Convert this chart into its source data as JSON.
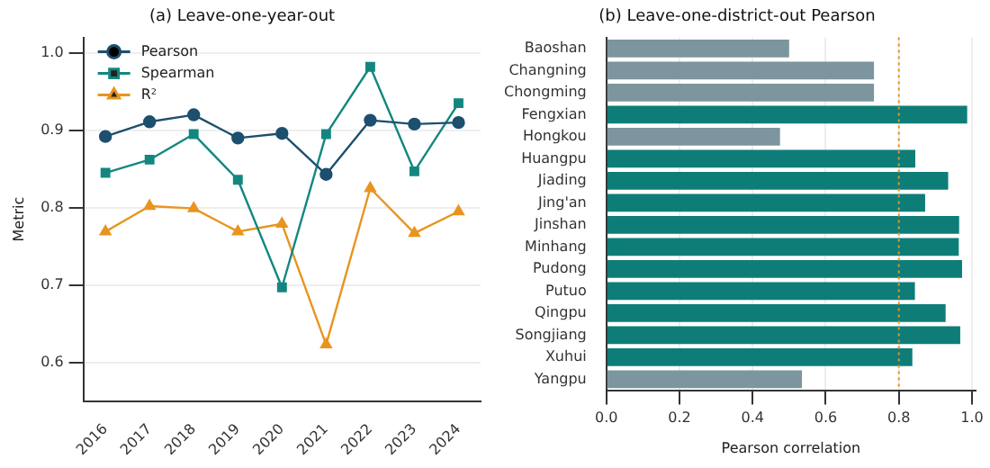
{
  "chart_data": [
    {
      "type": "line",
      "title": "(a) Leave-one-year-out",
      "ylabel": "Metric",
      "categories": [
        "2016",
        "2017",
        "2018",
        "2019",
        "2020",
        "2021",
        "2022",
        "2023",
        "2024"
      ],
      "series": [
        {
          "name": "Pearson",
          "color": "#1d4f6e",
          "marker": "circle",
          "values": [
            0.892,
            0.911,
            0.92,
            0.89,
            0.896,
            0.843,
            0.913,
            0.908,
            0.91
          ]
        },
        {
          "name": "Spearman",
          "color": "#13877f",
          "marker": "square",
          "values": [
            0.845,
            0.862,
            0.895,
            0.836,
            0.697,
            0.895,
            0.982,
            0.847,
            0.935
          ]
        },
        {
          "name": "R²",
          "color": "#e8941f",
          "marker": "triangle",
          "values": [
            0.769,
            0.802,
            0.799,
            0.769,
            0.779,
            0.623,
            0.825,
            0.767,
            0.795
          ]
        }
      ],
      "ylim": [
        0.55,
        1.02
      ],
      "yticks": [
        0.6,
        0.7,
        0.8,
        0.9,
        {
          "value": 1.0,
          "label": "1.0"
        }
      ],
      "grid": "y",
      "legend": "top left"
    },
    {
      "type": "bar",
      "orientation": "horizontal",
      "title": "(b) Leave-one-district-out Pearson",
      "xlabel": "Pearson correlation",
      "categories": [
        "Baoshan",
        "Changning",
        "Chongming",
        "Fengxian",
        "Hongkou",
        "Huangpu",
        "Jiading",
        "Jing'an",
        "Jinshan",
        "Minhang",
        "Pudong",
        "Putuo",
        "Qingpu",
        "Songjiang",
        "Xuhui",
        "Yangpu"
      ],
      "values": [
        0.5,
        0.732,
        0.732,
        0.987,
        0.475,
        0.845,
        0.935,
        0.872,
        0.965,
        0.964,
        0.973,
        0.844,
        0.928,
        0.968,
        0.837,
        0.535
      ],
      "colors": [
        "#7d959e",
        "#7d959e",
        "#7d959e",
        "#0e7d78",
        "#7d959e",
        "#0e7d78",
        "#0e7d78",
        "#0e7d78",
        "#0e7d78",
        "#0e7d78",
        "#0e7d78",
        "#0e7d78",
        "#0e7d78",
        "#0e7d78",
        "#0e7d78",
        "#7d959e"
      ],
      "xlim": [
        0,
        1.01
      ],
      "xticks": [
        {
          "value": 0,
          "label": "0.0"
        },
        0.2,
        0.4,
        0.6,
        0.8,
        {
          "value": 1.0,
          "label": "1.0"
        }
      ],
      "grid": "x",
      "ref_lines": [
        {
          "axis": "x",
          "value": 0.8,
          "color": "#e8941f",
          "line_style": "dotted"
        }
      ]
    }
  ]
}
